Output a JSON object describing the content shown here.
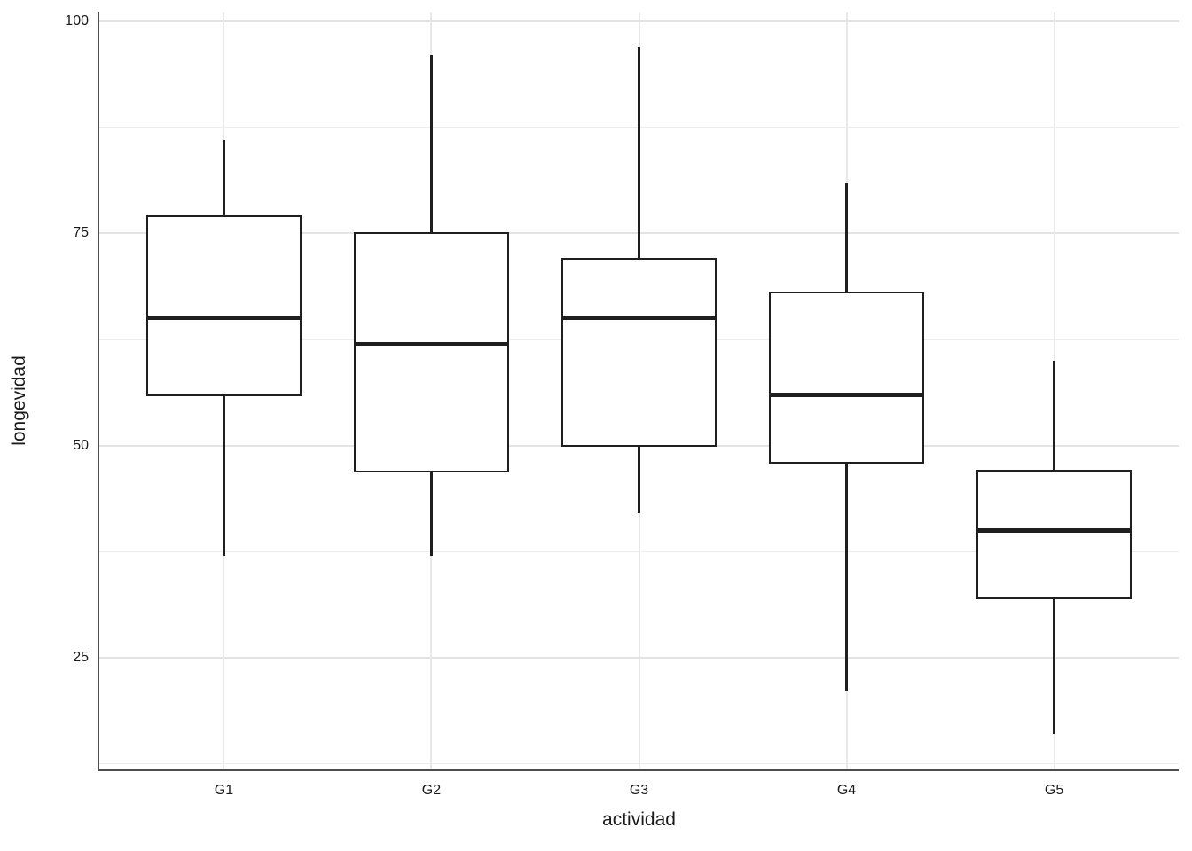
{
  "chart_data": {
    "type": "boxplot",
    "title": "",
    "xlabel": "actividad",
    "ylabel": "longevidad",
    "categories": [
      "G1",
      "G2",
      "G3",
      "G4",
      "G5"
    ],
    "series": [
      {
        "category": "G1",
        "whisker_low": 37,
        "q1": 56,
        "median": 65,
        "q3": 77,
        "whisker_high": 86
      },
      {
        "category": "G2",
        "whisker_low": 37,
        "q1": 47,
        "median": 62,
        "q3": 75,
        "whisker_high": 96
      },
      {
        "category": "G3",
        "whisker_low": 42,
        "q1": 50,
        "median": 65,
        "q3": 72,
        "whisker_high": 97
      },
      {
        "category": "G4",
        "whisker_low": 21,
        "q1": 48,
        "median": 56,
        "q3": 68,
        "whisker_high": 81
      },
      {
        "category": "G5",
        "whisker_low": 16,
        "q1": 32,
        "median": 40,
        "q3": 47,
        "whisker_high": 60
      }
    ],
    "y_axis": {
      "ticks": [
        100,
        75,
        50,
        25
      ],
      "minor_ticks": [
        87.5,
        62.5,
        37.5,
        12.5
      ],
      "range": [
        11.95,
        101.05
      ]
    },
    "grid": {
      "horizontal": "major-and-minor",
      "vertical": "at-category-centers"
    },
    "legend_position": "none",
    "colors": {
      "box_stroke": "#1F1F1F",
      "box_fill": "#FFFFFF",
      "axis_line": "#4D4D4D",
      "grid_major": "#E3E3E3",
      "grid_minor": "#ECECEC",
      "grid_vertical": "#E9E9E9",
      "text": "#1A1A1A",
      "background": "#FFFFFF"
    }
  }
}
